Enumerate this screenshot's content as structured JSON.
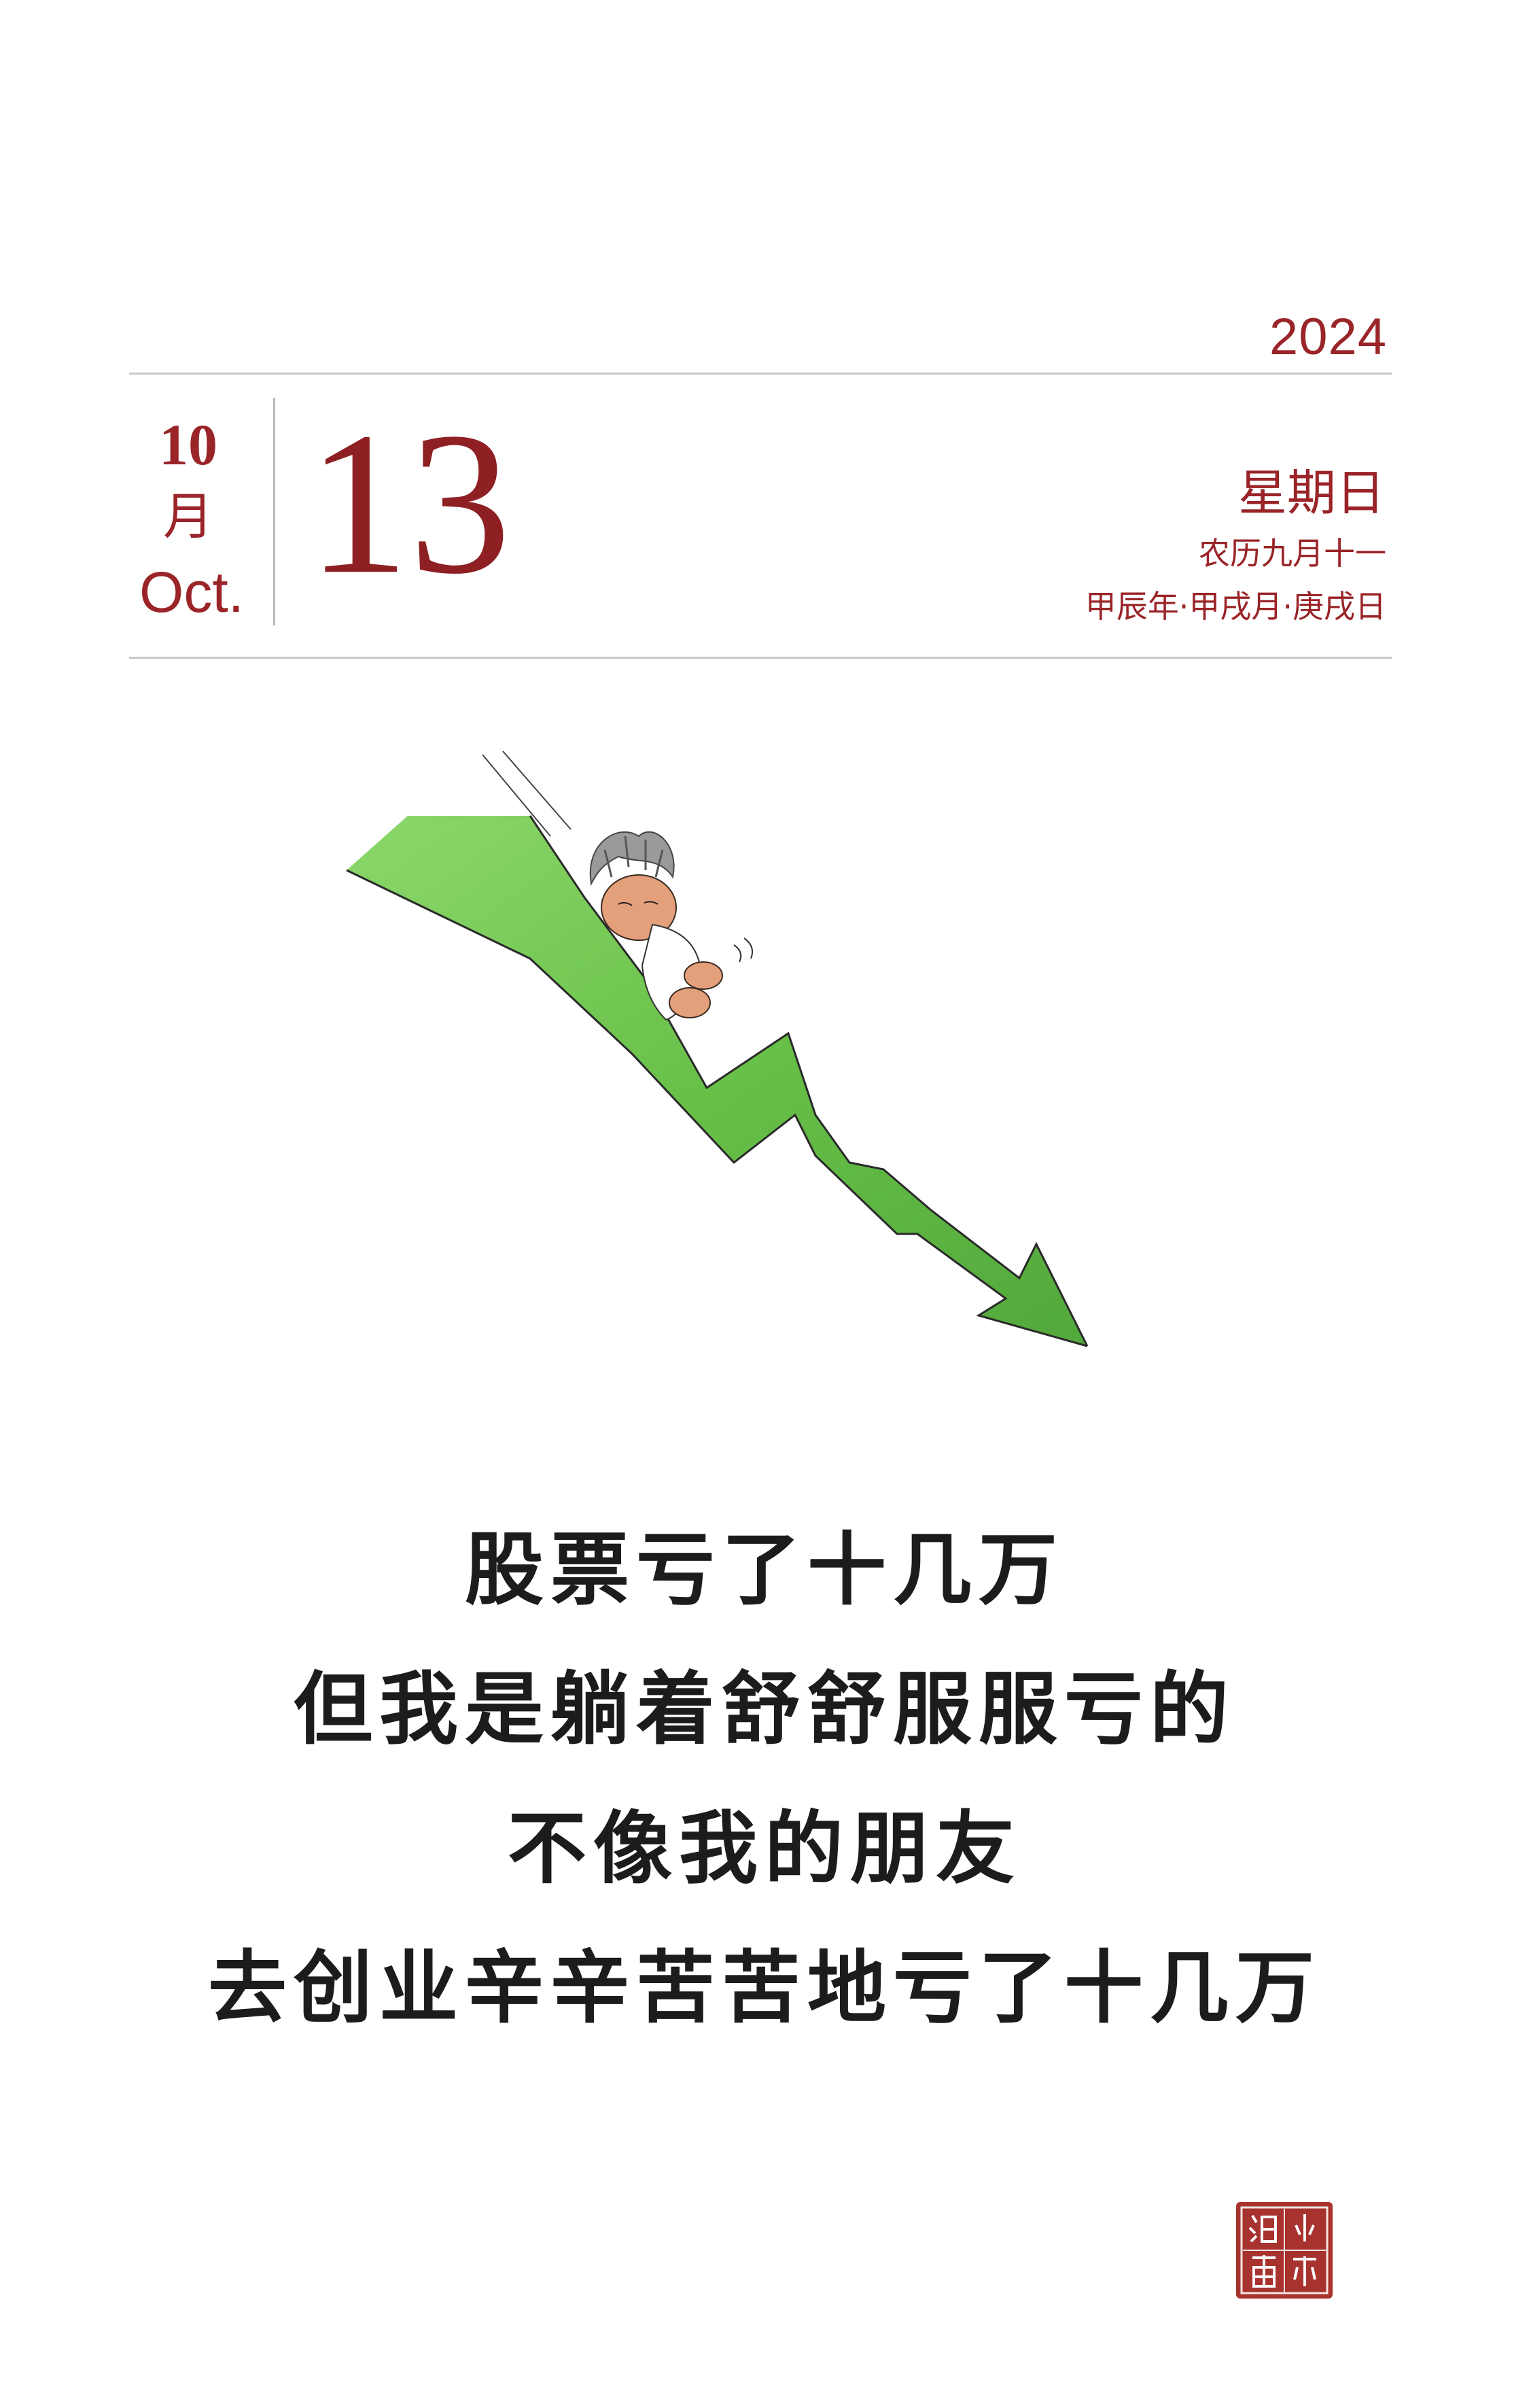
{
  "calendar": {
    "year": "2024",
    "month_number": "10",
    "month_cn": "月",
    "month_en": "Oct.",
    "day": "13",
    "weekday": "星期日",
    "lunar_date": "农历九月十一",
    "ganzhi": "甲辰年·甲戌月·庚戌日"
  },
  "caption": {
    "lines": [
      "股票亏了十几万",
      "但我是躺着舒舒服服亏的",
      "不像我的朋友",
      "去创业辛辛苦苦地亏了十几万"
    ]
  },
  "seal": {
    "chars": [
      "小",
      "林",
      "漫",
      "画"
    ]
  },
  "colors": {
    "accent": "#9a2428",
    "arrow_green": "#5bbf3a",
    "seal_red": "#a7322e"
  }
}
